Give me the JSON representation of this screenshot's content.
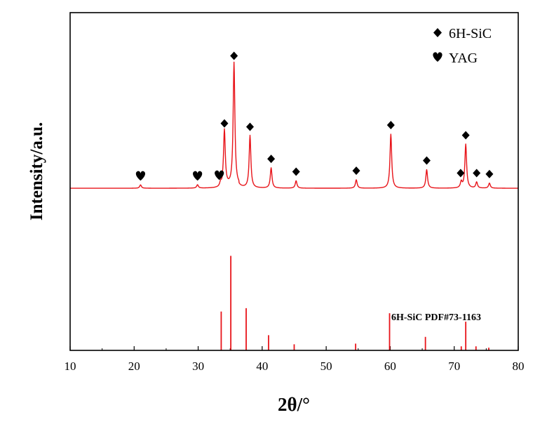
{
  "chart_data": {
    "type": "line",
    "xlabel": "2θ/°",
    "ylabel": "Intensity/a.u.",
    "xlim": [
      10,
      80
    ],
    "x_ticks": [
      "10",
      "20",
      "30",
      "40",
      "50",
      "60",
      "70",
      "80"
    ],
    "ylim": [
      0,
      1
    ],
    "y_ticks_labeled": false,
    "grid": false,
    "legend": {
      "position": "top-right",
      "entries": [
        {
          "label": "6H-SiC",
          "marker": "diamond",
          "icon": "diamond-icon",
          "color": "#000000"
        },
        {
          "label": "YAG",
          "marker": "heart",
          "icon": "heart-icon",
          "color": "#000000"
        }
      ]
    },
    "pattern": {
      "color": "#e8141a",
      "baseline": 0.48,
      "peaks": [
        {
          "x": 21.0,
          "height": 0.01
        },
        {
          "x": 29.9,
          "height": 0.01
        },
        {
          "x": 33.5,
          "height": 0.012
        },
        {
          "x": 34.1,
          "height": 0.165
        },
        {
          "x": 35.6,
          "height": 0.365
        },
        {
          "x": 38.1,
          "height": 0.155
        },
        {
          "x": 41.4,
          "height": 0.06
        },
        {
          "x": 45.3,
          "height": 0.022
        },
        {
          "x": 54.7,
          "height": 0.025
        },
        {
          "x": 60.1,
          "height": 0.16
        },
        {
          "x": 65.7,
          "height": 0.055
        },
        {
          "x": 71.1,
          "height": 0.018
        },
        {
          "x": 71.8,
          "height": 0.13
        },
        {
          "x": 73.5,
          "height": 0.018
        },
        {
          "x": 75.5,
          "height": 0.015
        }
      ]
    },
    "phase_markers": [
      {
        "x": 21.0,
        "phase": "YAG",
        "icon": "heart-icon"
      },
      {
        "x": 29.9,
        "phase": "YAG",
        "icon": "heart-icon"
      },
      {
        "x": 33.3,
        "phase": "YAG",
        "icon": "heart-icon"
      },
      {
        "x": 34.1,
        "phase": "6H-SiC",
        "icon": "diamond-icon"
      },
      {
        "x": 35.6,
        "phase": "6H-SiC",
        "icon": "diamond-icon"
      },
      {
        "x": 38.1,
        "phase": "6H-SiC",
        "icon": "diamond-icon"
      },
      {
        "x": 41.4,
        "phase": "6H-SiC",
        "icon": "diamond-icon"
      },
      {
        "x": 45.3,
        "phase": "6H-SiC",
        "icon": "diamond-icon"
      },
      {
        "x": 54.7,
        "phase": "6H-SiC",
        "icon": "diamond-icon"
      },
      {
        "x": 60.1,
        "phase": "6H-SiC",
        "icon": "diamond-icon"
      },
      {
        "x": 65.7,
        "phase": "6H-SiC",
        "icon": "diamond-icon"
      },
      {
        "x": 71.0,
        "phase": "6H-SiC",
        "icon": "diamond-icon"
      },
      {
        "x": 71.8,
        "phase": "6H-SiC",
        "icon": "diamond-icon"
      },
      {
        "x": 73.5,
        "phase": "6H-SiC",
        "icon": "diamond-icon"
      },
      {
        "x": 75.5,
        "phase": "6H-SiC",
        "icon": "diamond-icon"
      }
    ],
    "reference": {
      "label": "6H-SiC PDF#73-1163",
      "color": "#e8141a",
      "lines": [
        {
          "x": 33.6,
          "height": 0.115
        },
        {
          "x": 35.1,
          "height": 0.28
        },
        {
          "x": 37.5,
          "height": 0.125
        },
        {
          "x": 41.0,
          "height": 0.045
        },
        {
          "x": 45.0,
          "height": 0.018
        },
        {
          "x": 54.6,
          "height": 0.02
        },
        {
          "x": 59.9,
          "height": 0.11
        },
        {
          "x": 65.5,
          "height": 0.04
        },
        {
          "x": 71.1,
          "height": 0.012
        },
        {
          "x": 71.8,
          "height": 0.085
        },
        {
          "x": 73.4,
          "height": 0.012
        },
        {
          "x": 75.4,
          "height": 0.008
        }
      ]
    }
  }
}
